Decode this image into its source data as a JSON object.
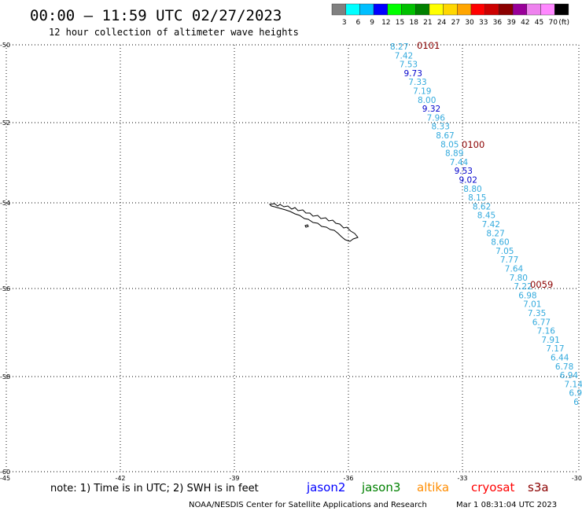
{
  "header": {
    "title": "00:00 – 11:59 UTC 02/27/2023",
    "subtitle": "12 hour collection of altimeter wave heights"
  },
  "legend": {
    "colors": [
      "#808080",
      "#00ffff",
      "#00bfff",
      "#0000ff",
      "#00ff00",
      "#00c000",
      "#008000",
      "#ffff00",
      "#ffd700",
      "#ffa500",
      "#ff0000",
      "#cc0000",
      "#8b0000",
      "#990099",
      "#ee82ee",
      "#ff88ff",
      "#000000"
    ],
    "labels": [
      "3",
      "6",
      "9",
      "12",
      "15",
      "18",
      "21",
      "24",
      "27",
      "30",
      "33",
      "36",
      "39",
      "42",
      "45",
      "70",
      "(ft)"
    ]
  },
  "axes": {
    "lon_labels": [
      "-45",
      "-42",
      "-39",
      "-36",
      "-33",
      "-30"
    ],
    "lon_values": [
      -45,
      -42,
      -39,
      -36,
      -33,
      -30
    ],
    "lat_labels": [
      "-50",
      "-52",
      "-54",
      "-56",
      "-58",
      "-60"
    ],
    "lat_values": [
      -50,
      -52,
      -54,
      -56,
      -58,
      -60
    ]
  },
  "passes": [
    "0101",
    "0100",
    "0059"
  ],
  "observations": [
    {
      "label": "8.27",
      "color": "#33aadd"
    },
    {
      "label": "7.42",
      "color": "#33aadd"
    },
    {
      "label": "7.53",
      "color": "#33aadd"
    },
    {
      "label": "9.73",
      "color": "#0000cc"
    },
    {
      "label": "7.33",
      "color": "#33aadd"
    },
    {
      "label": "7.19",
      "color": "#33aadd"
    },
    {
      "label": "8.00",
      "color": "#33aadd"
    },
    {
      "label": "9.32",
      "color": "#0000cc"
    },
    {
      "label": "7.96",
      "color": "#33aadd"
    },
    {
      "label": "8.33",
      "color": "#33aadd"
    },
    {
      "label": "8.67",
      "color": "#33aadd"
    },
    {
      "label": "8.05",
      "color": "#33aadd"
    },
    {
      "label": "8.89",
      "color": "#33aadd"
    },
    {
      "label": "7.44",
      "color": "#33aadd"
    },
    {
      "label": "9.53",
      "color": "#0000cc"
    },
    {
      "label": "9.02",
      "color": "#0000cc"
    },
    {
      "label": "8.80",
      "color": "#33aadd"
    },
    {
      "label": "8.15",
      "color": "#33aadd"
    },
    {
      "label": "8.62",
      "color": "#33aadd"
    },
    {
      "label": "8.45",
      "color": "#33aadd"
    },
    {
      "label": "7.42",
      "color": "#33aadd"
    },
    {
      "label": "8.27",
      "color": "#33aadd"
    },
    {
      "label": "8.60",
      "color": "#33aadd"
    },
    {
      "label": "7.05",
      "color": "#33aadd"
    },
    {
      "label": "7.77",
      "color": "#33aadd"
    },
    {
      "label": "7.64",
      "color": "#33aadd"
    },
    {
      "label": "7.80",
      "color": "#33aadd"
    },
    {
      "label": "7.22",
      "color": "#33aadd"
    },
    {
      "label": "6.98",
      "color": "#33aadd"
    },
    {
      "label": "7.01",
      "color": "#33aadd"
    },
    {
      "label": "7.35",
      "color": "#33aadd"
    },
    {
      "label": "6.77",
      "color": "#33aadd"
    },
    {
      "label": "7.16",
      "color": "#33aadd"
    },
    {
      "label": "7.91",
      "color": "#33aadd"
    },
    {
      "label": "7.17",
      "color": "#33aadd"
    },
    {
      "label": "6.44",
      "color": "#33aadd"
    },
    {
      "label": "6.78",
      "color": "#33aadd"
    },
    {
      "label": "6.94",
      "color": "#33aadd"
    },
    {
      "label": "7.14",
      "color": "#33aadd"
    },
    {
      "label": "6.9",
      "color": "#33aadd"
    },
    {
      "label": "6",
      "color": "#33aadd"
    }
  ],
  "footer": {
    "note": "note: 1) Time is in UTC; 2) SWH is in feet",
    "satellites": [
      {
        "name": "jason2",
        "color": "#0000ff"
      },
      {
        "name": "jason3",
        "color": "#008000"
      },
      {
        "name": "altika",
        "color": "#ff8c00"
      },
      {
        "name": "cryosat",
        "color": "#ff0000"
      },
      {
        "name": "s3a",
        "color": "#8b0000"
      }
    ],
    "credit": "NOAA/NESDIS Center for Satellite Applications and Research",
    "timestamp": "Mar  1 08:31:04 UTC 2023"
  }
}
